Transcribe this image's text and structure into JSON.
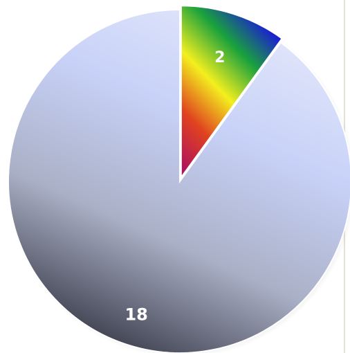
{
  "chart_data": {
    "type": "pie",
    "title": "",
    "legend": "none",
    "slices": [
      {
        "value": 2,
        "label": "2",
        "colors": [
          "#1a12e0",
          "#1aa23c",
          "#f3ef1e",
          "#e0431f",
          "#b0135c"
        ]
      },
      {
        "value": 18,
        "label": "18",
        "colors": [
          "#e4e8fa",
          "#c8d2f8",
          "#aab0c6",
          "#3a3c4a"
        ]
      }
    ]
  }
}
